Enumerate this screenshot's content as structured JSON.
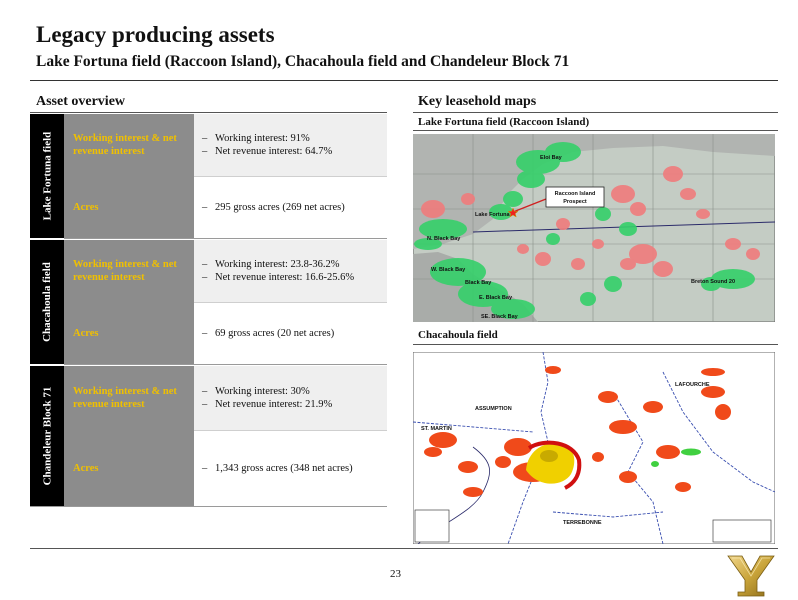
{
  "header": {
    "title": "Legacy producing assets",
    "subtitle": "Lake Fortuna field (Raccoon Island), Chacahoula field and Chandeleur Block 71"
  },
  "asset_overview": {
    "heading": "Asset overview",
    "fields": [
      {
        "name": "Lake Fortuna field",
        "rows": [
          {
            "label": "Working interest & net revenue interest",
            "items": [
              "Working interest: 91%",
              "Net revenue interest: 64.7%"
            ]
          },
          {
            "label": "Acres",
            "items": [
              "295 gross acres (269 net acres)"
            ]
          }
        ]
      },
      {
        "name": "Chacahoula field",
        "rows": [
          {
            "label": "Working interest & net revenue interest",
            "items": [
              "Working interest: 23.8-36.2%",
              "Net revenue interest: 16.6-25.6%"
            ]
          },
          {
            "label": "Acres",
            "items": [
              "69 gross acres (20 net acres)"
            ]
          }
        ]
      },
      {
        "name": "Chandeleur Block 71",
        "rows": [
          {
            "label": "Working interest & net revenue interest",
            "items": [
              "Working interest: 30%",
              "Net revenue interest: 21.9%"
            ]
          },
          {
            "label": "Acres",
            "items": [
              "1,343 gross acres (348 net acres)"
            ]
          }
        ]
      }
    ]
  },
  "maps": {
    "heading": "Key leasehold maps",
    "lake_fortuna": {
      "title": "Lake Fortuna field (Raccoon Island)",
      "labels": {
        "eloi_bay": "Eloi Bay",
        "raccoon_island_line1": "Raccoon Island",
        "raccoon_island_line2": "Prospect",
        "lake_fortuna": "Lake Fortuna",
        "n_black_bay": "N. Black Bay",
        "w_black_bay": "W. Black Bay",
        "black_bay": "Black Bay",
        "e_black_bay": "E. Black Bay",
        "se_black_bay": "SE. Black Bay",
        "breton_sound": "Breton Sound 20"
      }
    },
    "chacahoula": {
      "title": "Chacahoula field",
      "labels": {
        "st_martin": "ST. MARTIN",
        "assumption": "ASSUMPTION",
        "lafourche": "LAFOURCHE",
        "terrebonne": "TERREBONNE"
      }
    }
  },
  "footer": {
    "page_number": "23"
  },
  "colors": {
    "band": "#000000",
    "label_cell": "#8c8c8c",
    "label_text": "#f0c000",
    "shaded_cell": "#efefef",
    "lease_green": "#35d06a",
    "lease_red": "#f07c7c",
    "chacahoula_red": "#f04a1a",
    "logo_gold": "#c9a43a"
  }
}
